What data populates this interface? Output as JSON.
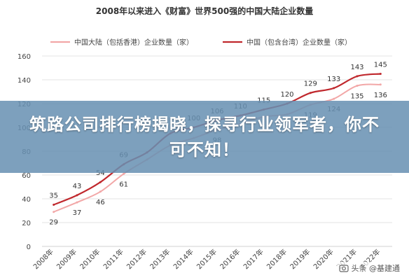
{
  "chart_data": {
    "type": "line",
    "title": "2008年以来进入《财富》世界500强的中国大陆企业数量",
    "categories": [
      "2008年",
      "2009年",
      "2010年",
      "2011年",
      "2012年",
      "2013年",
      "2014年",
      "2015年",
      "2016年",
      "2017年",
      "2018年",
      "2019年",
      "2020年",
      "2021年",
      "2022年"
    ],
    "ylim": [
      0,
      160
    ],
    "yticks": [
      0,
      20,
      40,
      60,
      80,
      100,
      120,
      140,
      160
    ],
    "legend_position": "top",
    "grid": "horizontal",
    "series": [
      {
        "name": "中国大陆（包括香港）企业数量（家）",
        "color": "#f2a7a7",
        "values": [
          29,
          37,
          46,
          61,
          73,
          85,
          91,
          98,
          103,
          109,
          111,
          119,
          124,
          135,
          136
        ],
        "labels": [
          "29",
          "37",
          "46",
          "61",
          "",
          "",
          "",
          "98",
          "",
          "",
          "",
          "119",
          "124",
          "135",
          "136"
        ]
      },
      {
        "name": "中国（包含台湾）企业数量（家）",
        "color": "#c0282d",
        "values": [
          35,
          43,
          54,
          69,
          79,
          95,
          100,
          106,
          110,
          115,
          120,
          129,
          133,
          143,
          145
        ],
        "labels": [
          "35",
          "43",
          "54",
          "69",
          "",
          "",
          "100",
          "106",
          "110",
          "115",
          "120",
          "129",
          "133",
          "143",
          "145"
        ]
      }
    ]
  },
  "overlay": {
    "headline": "筑路公司排行榜揭晓，探寻行业领军者，你不可不知！",
    "watermark_text": "头条 @基建通"
  },
  "colors": {
    "banner": "#6890b2",
    "grid": "#e3e3e3",
    "axis": "#d0d0d0",
    "text": "#444444"
  }
}
